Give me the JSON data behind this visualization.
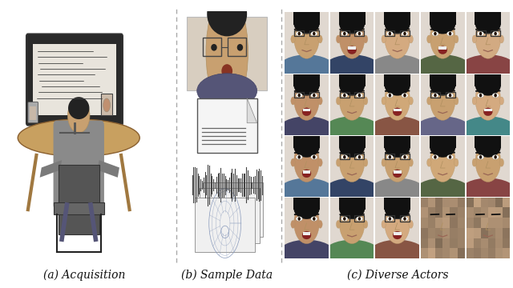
{
  "fig_width": 6.4,
  "fig_height": 3.6,
  "dpi": 100,
  "background_color": "#ffffff",
  "caption_a": "(a) Acquisition",
  "caption_b": "(b) Sample Data",
  "caption_c": "(c) Diverse Actors",
  "caption_fontsize": 10,
  "caption_style": "italic",
  "grid_rows": 4,
  "grid_cols": 5
}
